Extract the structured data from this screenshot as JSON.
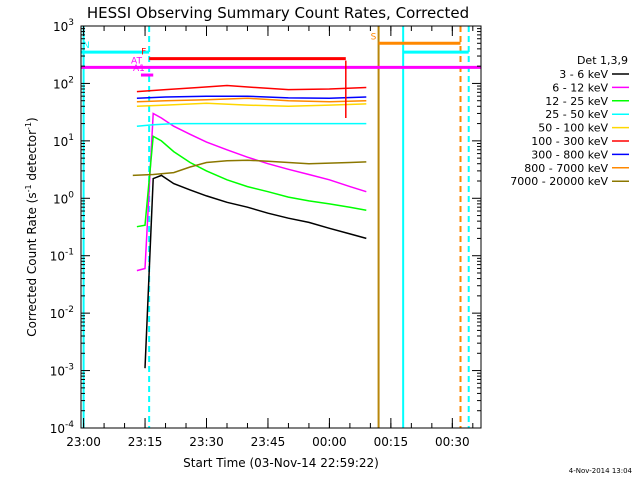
{
  "chart_data": {
    "type": "line",
    "title": "HESSI Observing Summary Count Rates, Corrected",
    "xlabel": "Start Time (03-Nov-14 22:59:22)",
    "ylabel_main": "Corrected Count Rate (s",
    "ylabel_sup1": "-1",
    "ylabel_mid": " detector",
    "ylabel_sup2": "-1",
    "ylabel_end": ")",
    "y_scale": "log",
    "ylim": [
      0.0001,
      1000
    ],
    "xlim": [
      "22:59:22",
      "00:37:00"
    ],
    "x_ticks": [
      "23:00",
      "23:15",
      "23:30",
      "23:45",
      "00:00",
      "00:15",
      "00:30"
    ],
    "y_ticks": [
      {
        "base": "10",
        "exp": "-4",
        "value": 0.0001
      },
      {
        "base": "10",
        "exp": "-3",
        "value": 0.001
      },
      {
        "base": "10",
        "exp": "-2",
        "value": 0.01
      },
      {
        "base": "10",
        "exp": "-1",
        "value": 0.1
      },
      {
        "base": "10",
        "exp": "0",
        "value": 1
      },
      {
        "base": "10",
        "exp": "1",
        "value": 10
      },
      {
        "base": "10",
        "exp": "2",
        "value": 100
      },
      {
        "base": "10",
        "exp": "3",
        "value": 1000
      }
    ],
    "legend_title": "Det 1,3,9",
    "legend_placement": "right",
    "grid": false,
    "series": [
      {
        "name": "3 - 6 keV",
        "color": "#000000",
        "x": [
          "23:15",
          "23:17",
          "23:19",
          "23:22",
          "23:26",
          "23:30",
          "23:35",
          "23:40",
          "23:45",
          "23:50",
          "23:55",
          "00:00",
          "00:05",
          "00:09"
        ],
        "y": [
          0.0011,
          2.2,
          2.5,
          1.8,
          1.4,
          1.1,
          0.85,
          0.7,
          0.55,
          0.45,
          0.38,
          0.3,
          0.24,
          0.2
        ]
      },
      {
        "name": "6 - 12 keV",
        "color": "#ff00ff",
        "x": [
          "23:13",
          "23:15",
          "23:17",
          "23:19",
          "23:22",
          "23:26",
          "23:30",
          "23:35",
          "23:40",
          "23:45",
          "23:50",
          "23:55",
          "00:00",
          "00:05",
          "00:09"
        ],
        "y": [
          0.055,
          0.06,
          30,
          25,
          18,
          13,
          9.5,
          7,
          5.2,
          4,
          3.2,
          2.6,
          2.1,
          1.6,
          1.3
        ]
      },
      {
        "name": "12 - 25 keV",
        "color": "#00ff00",
        "x": [
          "23:13",
          "23:15",
          "23:17",
          "23:19",
          "23:22",
          "23:26",
          "23:30",
          "23:35",
          "23:40",
          "23:45",
          "23:50",
          "23:55",
          "00:00",
          "00:05",
          "00:09"
        ],
        "y": [
          0.32,
          0.34,
          12,
          10,
          6.5,
          4.2,
          3,
          2.1,
          1.6,
          1.3,
          1.05,
          0.9,
          0.8,
          0.7,
          0.62
        ]
      },
      {
        "name": "25 - 50 keV",
        "color": "#00ffff",
        "x": [
          "23:13",
          "23:17",
          "23:22",
          "23:30",
          "23:40",
          "23:50",
          "00:00",
          "00:05",
          "00:09"
        ],
        "y": [
          18,
          19,
          20,
          20,
          20,
          20,
          20,
          20,
          20
        ]
      },
      {
        "name": "50 - 100 keV",
        "color": "#ffd700",
        "x": [
          "23:13",
          "23:20",
          "23:30",
          "23:40",
          "23:50",
          "00:00",
          "00:09"
        ],
        "y": [
          40,
          42,
          45,
          42,
          40,
          42,
          44
        ]
      },
      {
        "name": "100 - 300 keV",
        "color": "#ff0000",
        "x": [
          "23:13",
          "23:20",
          "23:28",
          "23:35",
          "23:42",
          "23:50",
          "00:00",
          "00:09"
        ],
        "y": [
          72,
          78,
          85,
          92,
          85,
          78,
          80,
          85
        ]
      },
      {
        "name": "300 - 800 keV",
        "color": "#0000ff",
        "x": [
          "23:13",
          "23:20",
          "23:30",
          "23:40",
          "23:50",
          "00:00",
          "00:09"
        ],
        "y": [
          55,
          58,
          60,
          60,
          56,
          55,
          58
        ]
      },
      {
        "name": "800 - 7000 keV",
        "color": "#ff8800",
        "x": [
          "23:13",
          "23:20",
          "23:30",
          "23:40",
          "23:50",
          "00:00",
          "00:09"
        ],
        "y": [
          48,
          50,
          52,
          55,
          50,
          48,
          50
        ]
      },
      {
        "name": "7000 - 20000 keV",
        "color": "#8b7700",
        "x": [
          "23:12",
          "23:17",
          "23:22",
          "23:26",
          "23:30",
          "23:35",
          "23:40",
          "23:45",
          "23:50",
          "23:55",
          "00:00",
          "00:05",
          "00:09"
        ],
        "y": [
          2.5,
          2.6,
          2.8,
          3.5,
          4.2,
          4.5,
          4.6,
          4.4,
          4.2,
          4.0,
          4.1,
          4.2,
          4.3
        ]
      }
    ],
    "vertical_lines": [
      {
        "x": "23:00",
        "color": "#00ffff",
        "style": "solid"
      },
      {
        "x": "23:16",
        "color": "#00ffff",
        "style": "dashed"
      },
      {
        "x": "00:12",
        "color": "#b8860b",
        "style": "solid"
      },
      {
        "x": "00:18",
        "color": "#00ffff",
        "style": "solid"
      },
      {
        "x": "00:32",
        "color": "#ff8800",
        "style": "dashed"
      },
      {
        "x": "00:34",
        "color": "#00ffff",
        "style": "dashed"
      }
    ],
    "flags": [
      {
        "label": "N",
        "color": "#00ffff",
        "y": 350,
        "segments": [
          [
            "22:59:22",
            "23:16"
          ],
          [
            "00:18",
            "00:34"
          ]
        ]
      },
      {
        "label": "F",
        "color": "#ff0000",
        "y": 270,
        "segments": [
          [
            "23:16",
            "00:04"
          ]
        ]
      },
      {
        "label": "S",
        "color": "#ff8800",
        "y": 500,
        "segments": [
          [
            "00:12",
            "00:32"
          ]
        ]
      },
      {
        "label": "AT",
        "color": "#ff00ff",
        "y": 190,
        "segments": [
          [
            "22:59:22",
            "00:37"
          ]
        ]
      },
      {
        "label": "A1",
        "color": "#ff00ff",
        "y": 140,
        "segments": [
          [
            "23:14",
            "23:17"
          ]
        ]
      }
    ],
    "spike": {
      "x": "00:04",
      "color": "#ff0000",
      "y_low": 25,
      "y_high": 250
    },
    "spike_marker": {
      "label": "AT",
      "color": "#ff00ff"
    }
  },
  "stamp": "4-Nov-2014 13:04"
}
